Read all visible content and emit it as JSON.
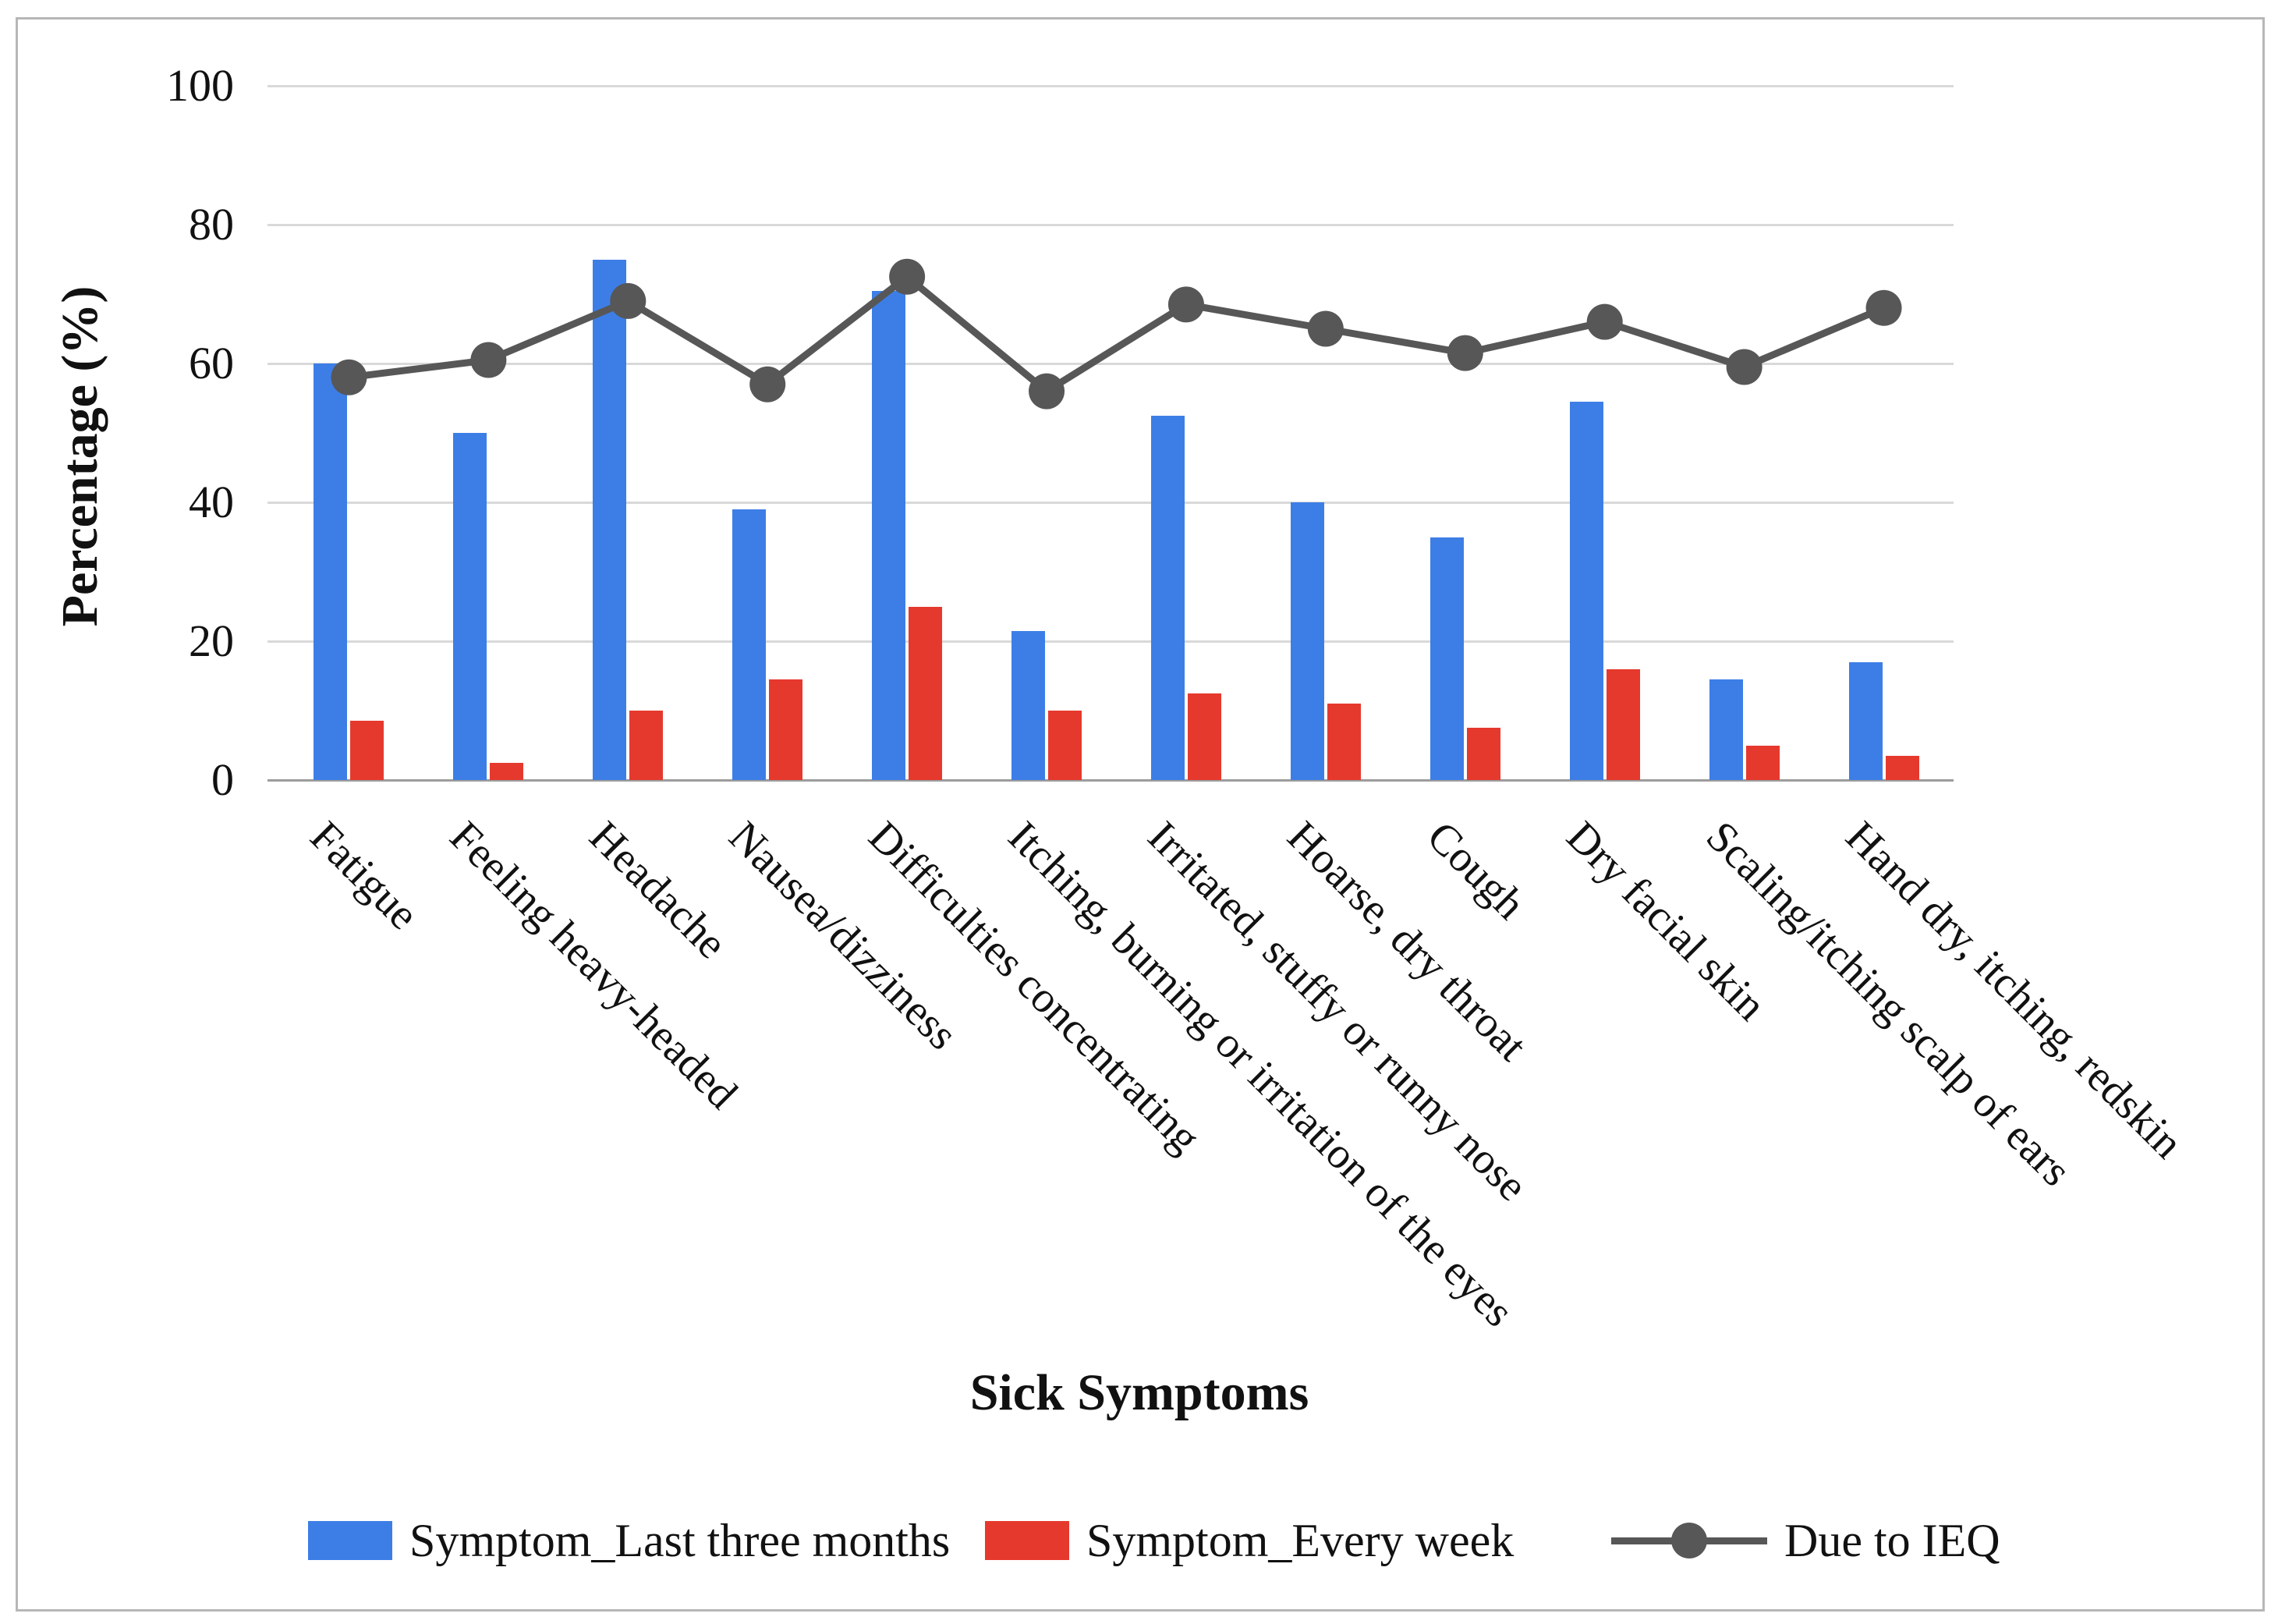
{
  "figure": {
    "background": "#ffffff",
    "border_color": "#b7b7b7"
  },
  "chart_data": {
    "type": "bar",
    "title": "",
    "xlabel": "Sick Symptoms",
    "ylabel": "Percentage (%)",
    "ylim": [
      0,
      100
    ],
    "yticks": [
      0,
      20,
      40,
      60,
      80,
      100
    ],
    "grid": true,
    "legend_position": "bottom",
    "categories": [
      "Fatigue",
      "Feeling heavy-headed",
      "Headache",
      "Nausea/dizziness",
      "Difficulties concentrating",
      "Itching, burning or irritation of the eyes",
      "Irritated, stuffy or runny nose",
      "Hoarse, dry throat",
      "Cough",
      "Dry facial skin",
      "Scaling/itching scalp of ears",
      "Hand dry, itching, redskin"
    ],
    "series": [
      {
        "name": "Symptom_Last three months",
        "type": "bar",
        "color": "#3d7ee6",
        "values": [
          60,
          50,
          75,
          39,
          70.5,
          21.5,
          52.5,
          40,
          35,
          54.5,
          14.5,
          17
        ]
      },
      {
        "name": "Symptom_Every week",
        "type": "bar",
        "color": "#e6392e",
        "values": [
          8.5,
          2.5,
          10,
          14.5,
          25,
          10,
          12.5,
          11,
          7.5,
          16,
          5,
          3.5
        ]
      },
      {
        "name": "Due to IEQ",
        "type": "line",
        "color": "#575757",
        "values": [
          58,
          60.5,
          69,
          57,
          72.5,
          56,
          68.5,
          65,
          61.5,
          66,
          59.5,
          68
        ]
      }
    ]
  }
}
